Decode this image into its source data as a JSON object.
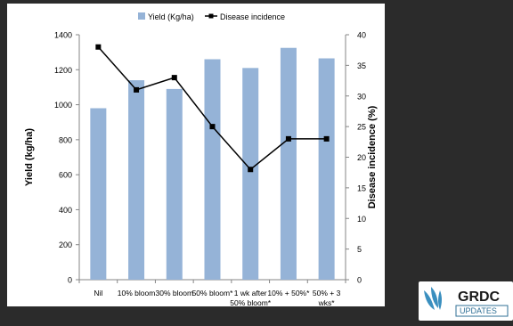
{
  "chart_data": {
    "type": "bar+line",
    "categories": [
      "Nil",
      "10% bloom",
      "30% bloom",
      "50% bloom*",
      "1 wk after 50% bloom*",
      "10% + 50%*",
      "50% + 3 wks*"
    ],
    "category_lines": [
      [
        "Nil"
      ],
      [
        "10% bloom"
      ],
      [
        "30% bloom"
      ],
      [
        "50% bloom*"
      ],
      [
        "1 wk after",
        "50% bloom*"
      ],
      [
        "10% + 50%*"
      ],
      [
        "50% + 3",
        "wks*"
      ]
    ],
    "series": [
      {
        "name": "Yield (Kg/ha)",
        "type": "bar",
        "axis": "left",
        "values": [
          980,
          1140,
          1090,
          1260,
          1210,
          1325,
          1265
        ]
      },
      {
        "name": "Disease incidence",
        "type": "line",
        "axis": "right",
        "values": [
          38,
          31,
          33,
          25,
          18,
          23,
          23
        ]
      }
    ],
    "ylabel": "Yield (kg/ha)",
    "y2label": "Disease incidence (%)",
    "ylim": [
      0,
      1400
    ],
    "y2lim": [
      0,
      40
    ],
    "yticks": [
      0,
      200,
      400,
      600,
      800,
      1000,
      1200,
      1400
    ],
    "y2ticks": [
      0,
      5,
      10,
      15,
      20,
      25,
      30,
      35,
      40
    ],
    "legend_position": "top",
    "grid": false,
    "colors": {
      "bar": "#95b3d7",
      "line": "#000000"
    }
  },
  "logo": {
    "brand": "GRDC",
    "tagline": "UPDATES"
  }
}
